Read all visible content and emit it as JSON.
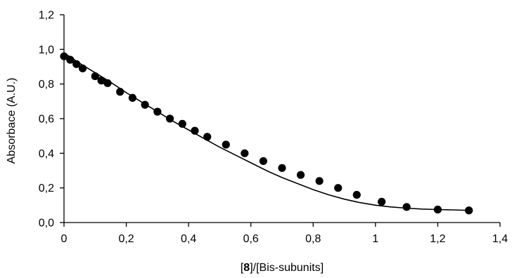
{
  "chart_data": {
    "type": "scatter",
    "xlabel_parts": [
      "[",
      "8",
      "]/[Bis-subunits]"
    ],
    "ylabel": "Absorbace (A.U.)",
    "xlim": [
      0,
      1.4
    ],
    "ylim": [
      0,
      1.2
    ],
    "x_ticks": [
      "0",
      "0,2",
      "0,4",
      "0,6",
      "0,8",
      "1",
      "1,2",
      "1,4"
    ],
    "y_ticks": [
      "0,0",
      "0,2",
      "0,4",
      "0,6",
      "0,8",
      "1,0",
      "1,2"
    ],
    "grid": false,
    "legend": "none",
    "series": [
      {
        "kind": "points",
        "color": "#000000",
        "x": [
          0.0,
          0.02,
          0.04,
          0.06,
          0.1,
          0.12,
          0.14,
          0.18,
          0.22,
          0.26,
          0.3,
          0.34,
          0.38,
          0.42,
          0.46,
          0.52,
          0.58,
          0.64,
          0.7,
          0.76,
          0.82,
          0.88,
          0.94,
          1.02,
          1.1,
          1.2,
          1.3
        ],
        "y": [
          0.96,
          0.94,
          0.915,
          0.89,
          0.845,
          0.82,
          0.805,
          0.755,
          0.72,
          0.68,
          0.64,
          0.6,
          0.57,
          0.53,
          0.495,
          0.45,
          0.4,
          0.355,
          0.315,
          0.275,
          0.24,
          0.2,
          0.16,
          0.12,
          0.09,
          0.075,
          0.07
        ]
      },
      {
        "kind": "fit-line",
        "color": "#000000",
        "x": [
          0.0,
          0.05,
          0.1,
          0.15,
          0.2,
          0.25,
          0.3,
          0.35,
          0.4,
          0.45,
          0.5,
          0.55,
          0.6,
          0.65,
          0.7,
          0.75,
          0.8,
          0.85,
          0.9,
          0.95,
          1.0,
          1.05,
          1.1,
          1.15,
          1.2,
          1.25,
          1.3
        ],
        "y": [
          0.98,
          0.92,
          0.865,
          0.81,
          0.75,
          0.695,
          0.64,
          0.585,
          0.535,
          0.485,
          0.435,
          0.39,
          0.345,
          0.3,
          0.26,
          0.225,
          0.19,
          0.16,
          0.135,
          0.115,
          0.1,
          0.09,
          0.083,
          0.078,
          0.075,
          0.073,
          0.07
        ]
      }
    ]
  }
}
